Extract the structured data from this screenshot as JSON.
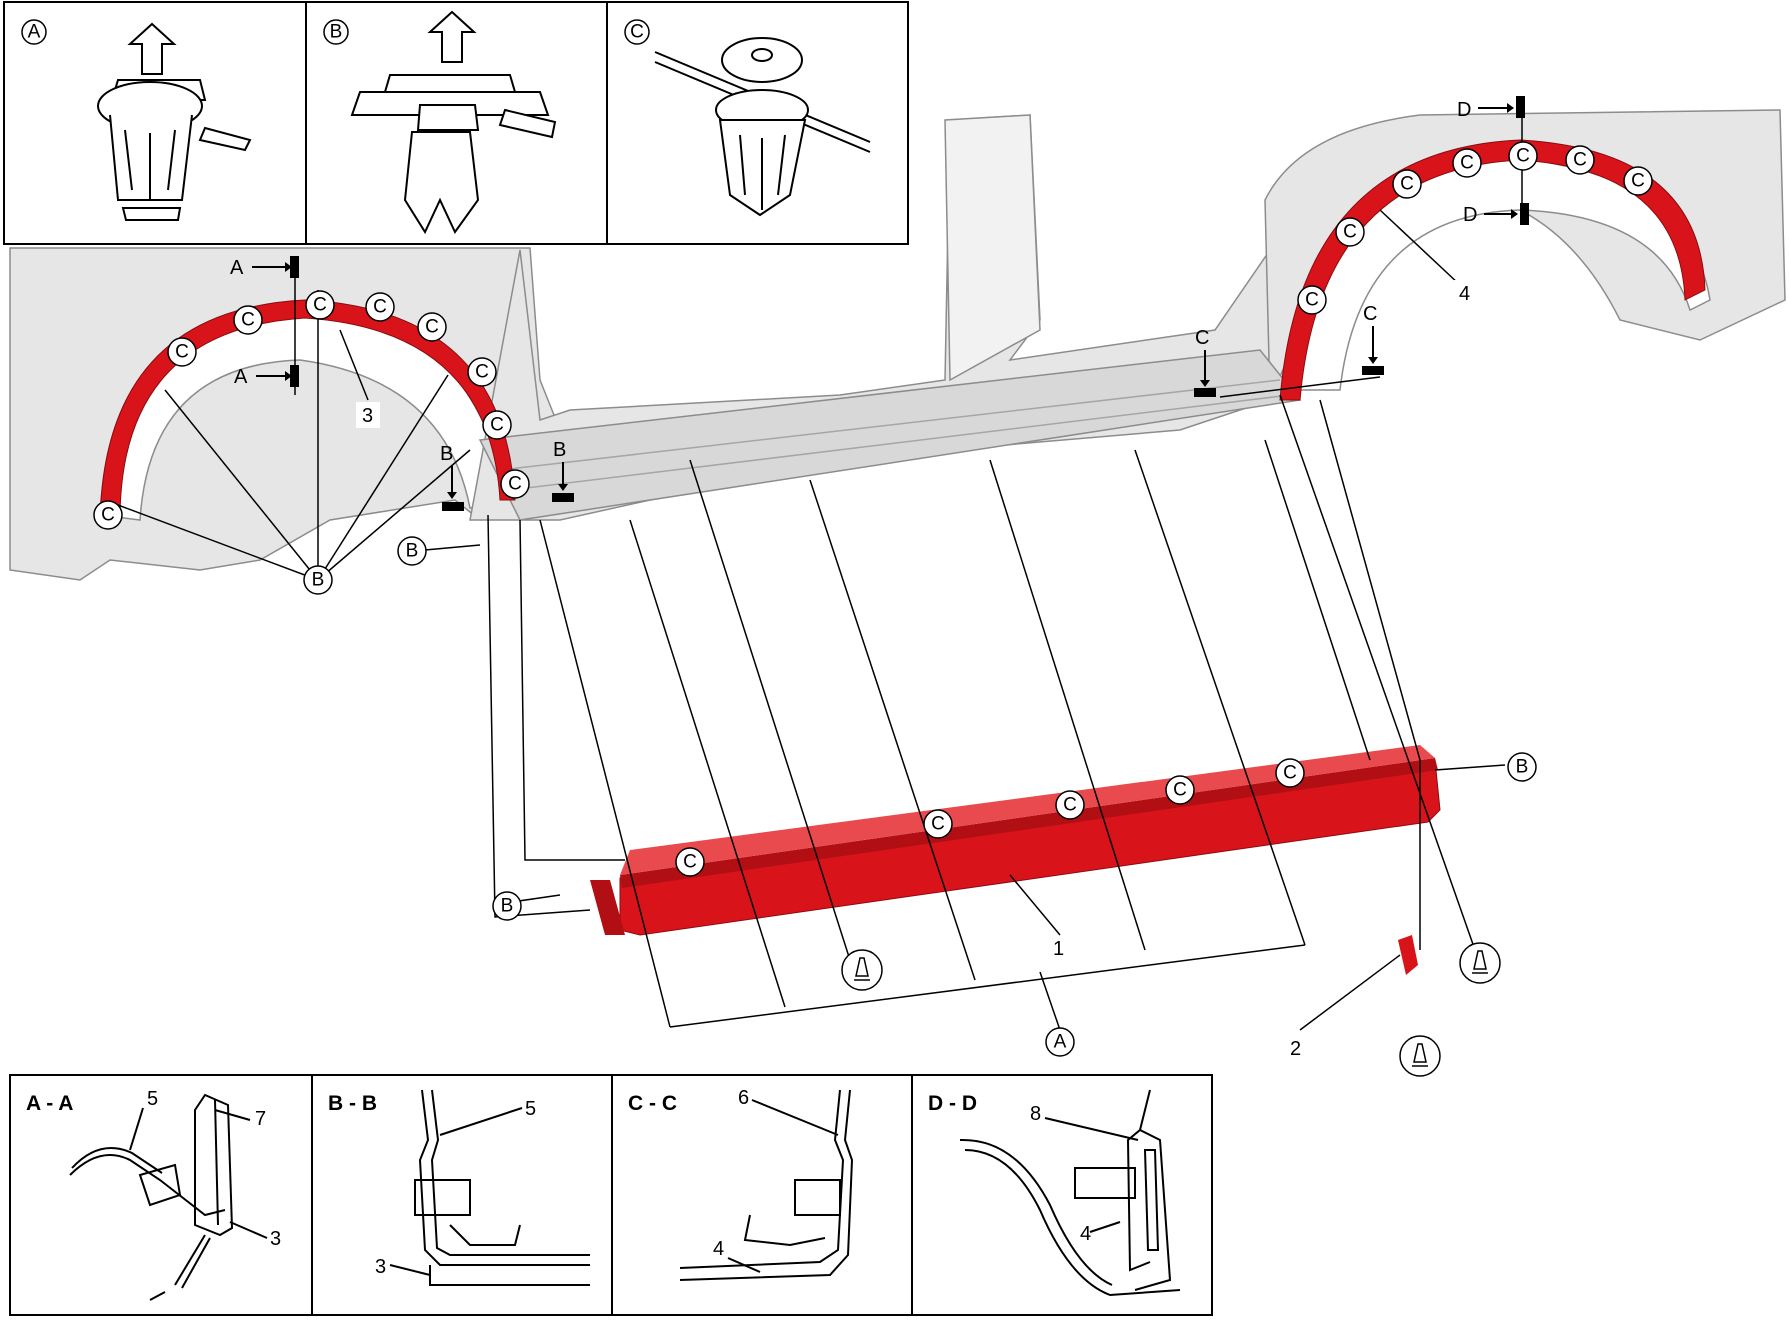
{
  "clip_panels": [
    {
      "id": "A",
      "circle_label": "A"
    },
    {
      "id": "B",
      "circle_label": "B"
    },
    {
      "id": "C",
      "circle_label": "C"
    }
  ],
  "section_panels": [
    {
      "title": "A - A",
      "callouts": [
        "5",
        "7",
        "3"
      ]
    },
    {
      "title": "B - B",
      "callouts": [
        "5",
        "3"
      ]
    },
    {
      "title": "C - C",
      "callouts": [
        "6",
        "4"
      ]
    },
    {
      "title": "D - D",
      "callouts": [
        "8",
        "4"
      ]
    }
  ],
  "part_numbers": {
    "rocker_molding": "1",
    "bracket": "2",
    "rear_arch_molding": "3",
    "front_arch_molding": "4"
  },
  "section_markers": {
    "a": "A",
    "b": "B",
    "c": "C",
    "d": "D"
  },
  "clip_labels": {
    "c": "C",
    "b": "B",
    "a": "A"
  },
  "colors": {
    "part_highlight": "#d8141a",
    "body_fill": "#e6e6e6",
    "body_line": "#8c8c8c",
    "ink": "#000000"
  },
  "icons": {
    "screw": "tapping-screw-icon",
    "arrow": "pull-direction-arrow-icon"
  }
}
